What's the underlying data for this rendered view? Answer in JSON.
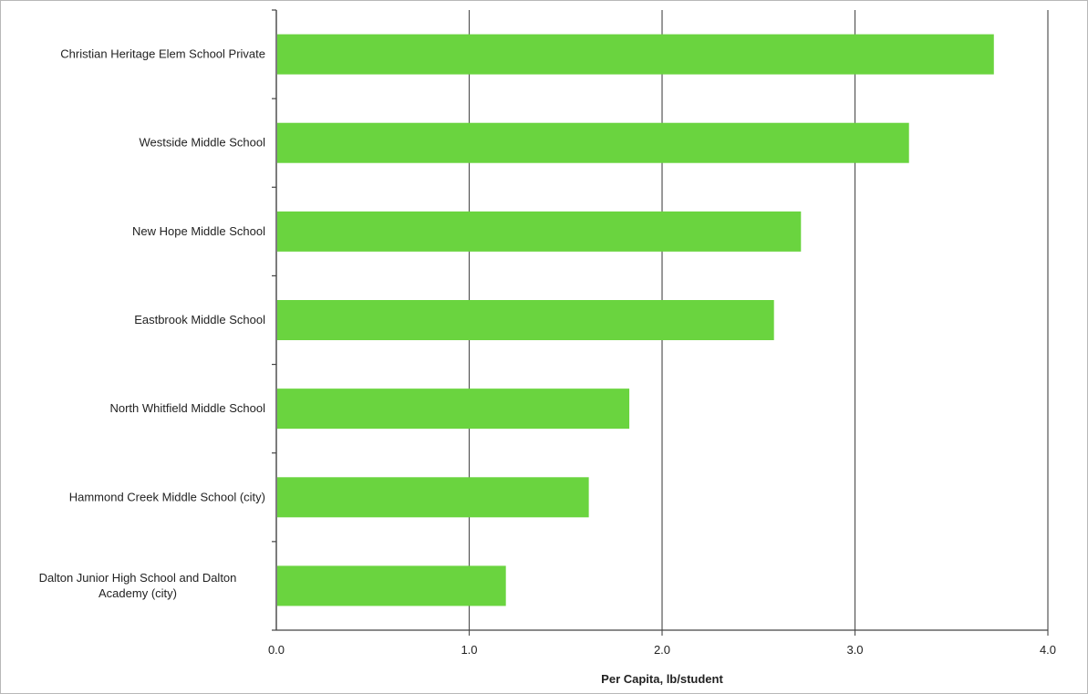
{
  "chart_data": {
    "type": "bar",
    "orientation": "horizontal",
    "title": "",
    "xlabel": "Per Capita, lb/student",
    "ylabel": "",
    "categories": [
      "Christian Heritage Elem School Private",
      "Westside Middle School",
      "New Hope Middle School",
      "Eastbrook Middle School",
      "North Whitfield Middle School",
      "Hammond Creek Middle School (city)",
      "Dalton Junior High School and Dalton Academy (city)"
    ],
    "category_label_lines": [
      [
        "Christian Heritage Elem School Private"
      ],
      [
        "Westside Middle School"
      ],
      [
        "New Hope Middle School"
      ],
      [
        "Eastbrook Middle School"
      ],
      [
        "North Whitfield Middle School"
      ],
      [
        "Hammond Creek Middle School (city)"
      ],
      [
        "Dalton Junior High School and Dalton",
        "Academy (city)"
      ]
    ],
    "values": [
      3.72,
      3.28,
      2.72,
      2.58,
      1.83,
      1.62,
      1.19
    ],
    "xlim": [
      0,
      4
    ],
    "xticks": [
      0,
      1,
      2,
      3,
      4
    ],
    "xtick_labels": [
      "0.0",
      "1.0",
      "2.0",
      "3.0",
      "4.0"
    ],
    "grid": "vertical",
    "legend": "none",
    "bar_color": "#6ad43f",
    "grid_color": "#555555"
  }
}
